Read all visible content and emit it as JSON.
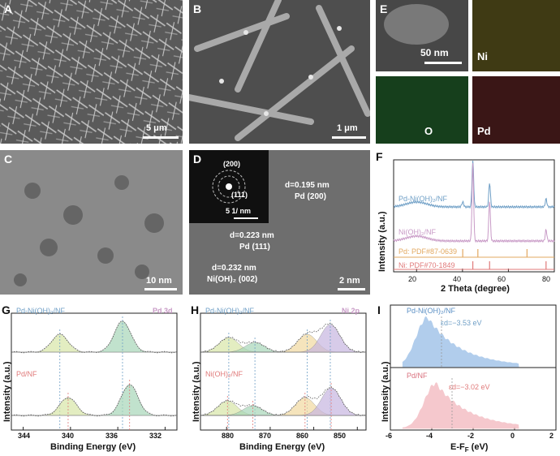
{
  "panels": {
    "A": {
      "label": "A",
      "scale_bar": "5 μm"
    },
    "B": {
      "label": "B",
      "scale_bar": "1 μm"
    },
    "C": {
      "label": "C",
      "scale_bar": "10 nm"
    },
    "D": {
      "label": "D",
      "scale_bar": "2 nm",
      "saed_rings": [
        "(200)",
        "(111)"
      ],
      "saed_scale": "5 1/ nm",
      "annotations": [
        {
          "d": "d=0.195 nm",
          "plane": "Pd (200)"
        },
        {
          "d": "d=0.223 nm",
          "plane": "Pd (111)"
        },
        {
          "d": "d=0.232 nm",
          "plane": "Ni(OH)₂ (002)"
        }
      ]
    },
    "E": {
      "label": "E",
      "scale_bar": "50 nm",
      "maps": [
        "Ni",
        "O",
        "Pd"
      ]
    }
  },
  "chart_data": [
    {
      "panel": "F",
      "type": "line",
      "xlabel": "2 Theta (degree)",
      "ylabel": "Intensity (a.u.)",
      "xlim": [
        10,
        80
      ],
      "xticks": [
        20,
        40,
        60,
        80
      ],
      "series": [
        {
          "name": "Pd-Ni(OH)₂/NF",
          "color": "#6f9fc6"
        },
        {
          "name": "Ni(OH)₂/NF",
          "color": "#c89ac6"
        },
        {
          "name": "Pd: PDF#87-0639",
          "color": "#e2a860",
          "peaks": [
            40.1,
            46.7,
            68.1
          ]
        },
        {
          "name": "Ni: PDF#70-1849",
          "color": "#e07a7a",
          "peaks": [
            44.5,
            51.8,
            76.4
          ]
        }
      ]
    },
    {
      "panel": "G",
      "type": "line",
      "title": "Pd 3d",
      "xlabel": "Binding Energy (eV)",
      "ylabel": "Intensity (a.u.)",
      "xlim": [
        345,
        331
      ],
      "xticks": [
        344,
        340,
        336,
        332
      ],
      "series": [
        {
          "name": "Pd-Ni(OH)₂/NF",
          "color": "#6f9fc6",
          "peaks_eV": [
            340.9,
            335.6
          ]
        },
        {
          "name": "Pd/NF",
          "color": "#e07a7a",
          "peaks_eV": [
            340.2,
            335.0
          ]
        }
      ]
    },
    {
      "panel": "H",
      "type": "line",
      "title": "Ni 2p",
      "xlabel": "Binding Energy (eV)",
      "ylabel": "Intensity (a.u.)",
      "xlim": [
        886,
        848
      ],
      "xticks": [
        880,
        870,
        860,
        850
      ],
      "series": [
        {
          "name": "Pd-Ni(OH)₂/NF",
          "color": "#6f9fc6",
          "peaks_eV": [
            879.5,
            873.5,
            861.5,
            856.2
          ]
        },
        {
          "name": "Ni(OH)₂/NF",
          "color": "#e07a7a",
          "peaks_eV": [
            879.8,
            874.0,
            862.0,
            856.0
          ]
        }
      ]
    },
    {
      "panel": "I",
      "type": "area",
      "xlabel": "E-F",
      "xlabel_sub": "F",
      "xlabel_unit": " (eV)",
      "ylabel": "Intensity (a.u.)",
      "xlim": [
        -6,
        2
      ],
      "xticks": [
        -6,
        -4,
        -2,
        0,
        2
      ],
      "series": [
        {
          "name": "Pd-Ni(OH)₂/NF",
          "color": "#a9c8ea",
          "d_band_center": -3.53,
          "label": "εd=−3.53 eV"
        },
        {
          "name": "Pd/NF",
          "color": "#f4c3c8",
          "d_band_center": -3.02,
          "label": "εd=−3.02 eV"
        }
      ]
    }
  ],
  "panel_labels": {
    "F": "F",
    "G": "G",
    "H": "H",
    "I": "I"
  }
}
